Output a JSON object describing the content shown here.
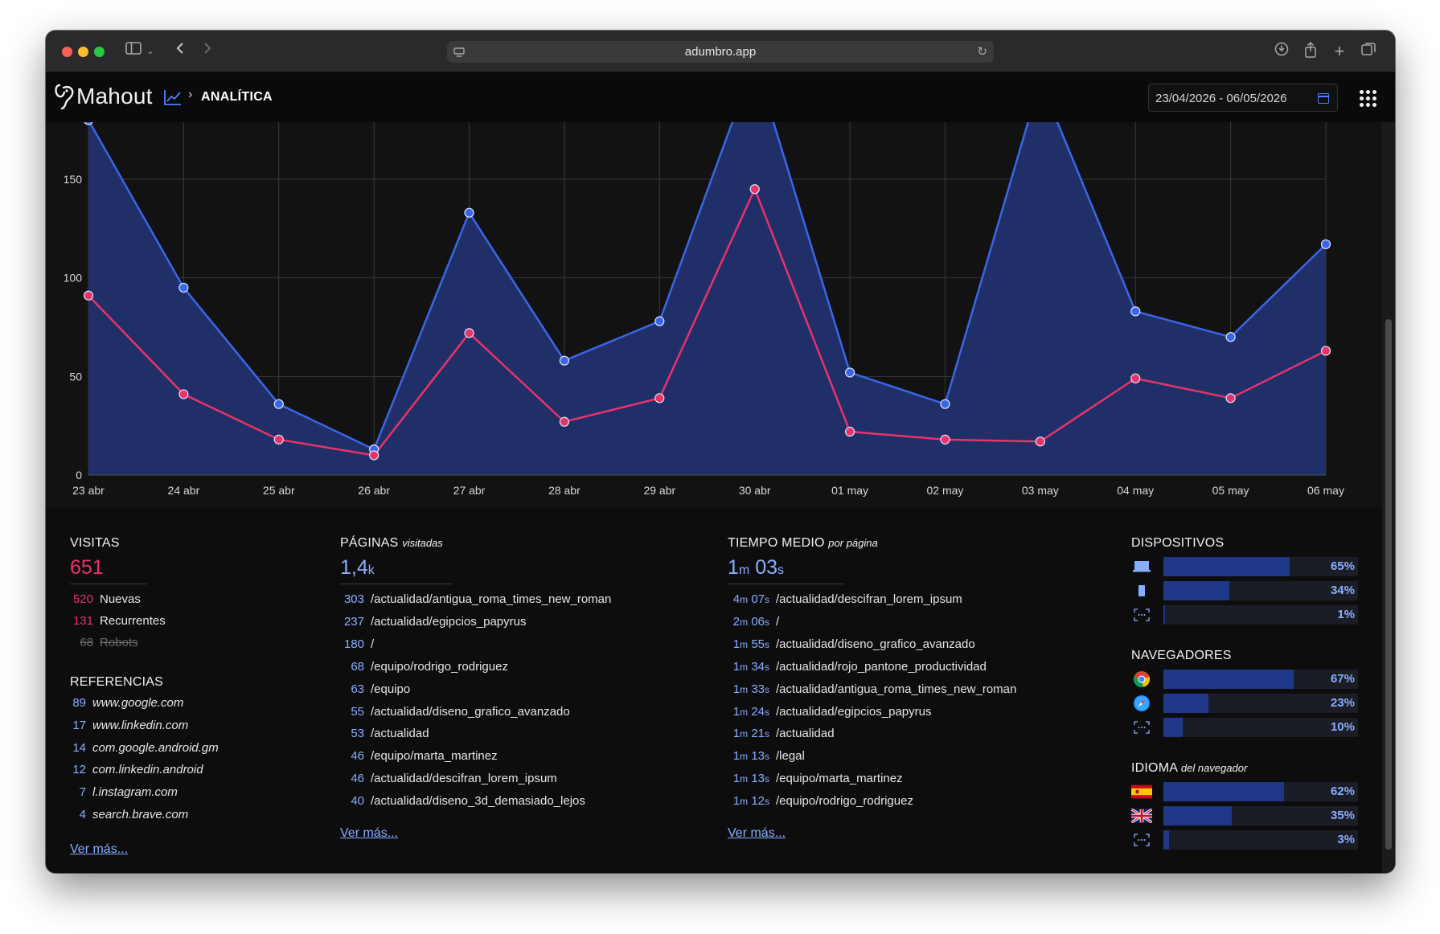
{
  "browser": {
    "url": "adumbro.app"
  },
  "header": {
    "logo_text": "Mahout",
    "breadcrumb": "ANALÍTICA",
    "date_range": "23/04/2026 - 06/05/2026"
  },
  "chart_data": {
    "type": "area",
    "categories": [
      "23 abr",
      "24 abr",
      "25 abr",
      "26 abr",
      "27 abr",
      "28 abr",
      "29 abr",
      "30 abr",
      "01 may",
      "02 may",
      "03 may",
      "04 may",
      "05 may",
      "06 may"
    ],
    "series": [
      {
        "color": "#3a66e8",
        "values": [
          180,
          95,
          36,
          13,
          133,
          58,
          78,
          210,
          52,
          36,
          200,
          83,
          70,
          117
        ]
      },
      {
        "color": "#e8336a",
        "values": [
          91,
          41,
          18,
          10,
          72,
          27,
          39,
          145,
          22,
          18,
          17,
          49,
          39,
          63
        ]
      }
    ],
    "yticks": [
      0,
      50,
      100,
      150
    ],
    "ylim": [
      0,
      178
    ],
    "grid": true
  },
  "visitas": {
    "title": "VISITAS",
    "total": "651",
    "rows": [
      {
        "value": "520",
        "label": "Nuevas"
      },
      {
        "value": "131",
        "label": "Recurrentes"
      },
      {
        "value": "68",
        "label": "Robots"
      }
    ]
  },
  "referencias": {
    "title": "REFERENCIAS",
    "rows": [
      {
        "value": "89",
        "label": "www.google.com"
      },
      {
        "value": "17",
        "label": "www.linkedin.com"
      },
      {
        "value": "14",
        "label": "com.google.android.gm"
      },
      {
        "value": "12",
        "label": "com.linkedin.android"
      },
      {
        "value": "7",
        "label": "l.instagram.com"
      },
      {
        "value": "4",
        "label": "search.brave.com"
      }
    ],
    "more": "Ver más..."
  },
  "paginas": {
    "title": "PÁGINAS",
    "subtitle": "visitadas",
    "total": "1,4",
    "total_unit": "k",
    "rows": [
      {
        "value": "303",
        "label": "/actualidad/antigua_roma_times_new_roman"
      },
      {
        "value": "237",
        "label": "/actualidad/egipcios_papyrus"
      },
      {
        "value": "180",
        "label": "/"
      },
      {
        "value": "68",
        "label": "/equipo/rodrigo_rodriguez"
      },
      {
        "value": "63",
        "label": "/equipo"
      },
      {
        "value": "55",
        "label": "/actualidad/diseno_grafico_avanzado"
      },
      {
        "value": "53",
        "label": "/actualidad"
      },
      {
        "value": "46",
        "label": "/equipo/marta_martinez"
      },
      {
        "value": "46",
        "label": "/actualidad/descifran_lorem_ipsum"
      },
      {
        "value": "40",
        "label": "/actualidad/diseno_3d_demasiado_lejos"
      }
    ],
    "more": "Ver más..."
  },
  "tiempo": {
    "title": "TIEMPO MEDIO",
    "subtitle": "por página",
    "total_m": "1",
    "total_s": "03",
    "unit_m": "m",
    "unit_s": "s",
    "rows": [
      {
        "m": "4",
        "s": "07",
        "label": "/actualidad/descifran_lorem_ipsum"
      },
      {
        "m": "2",
        "s": "06",
        "label": "/"
      },
      {
        "m": "1",
        "s": "55",
        "label": "/actualidad/diseno_grafico_avanzado"
      },
      {
        "m": "1",
        "s": "34",
        "label": "/actualidad/rojo_pantone_productividad"
      },
      {
        "m": "1",
        "s": "33",
        "label": "/actualidad/antigua_roma_times_new_roman"
      },
      {
        "m": "1",
        "s": "24",
        "label": "/actualidad/egipcios_papyrus"
      },
      {
        "m": "1",
        "s": "21",
        "label": "/actualidad"
      },
      {
        "m": "1",
        "s": "13",
        "label": "/legal"
      },
      {
        "m": "1",
        "s": "13",
        "label": "/equipo/marta_martinez"
      },
      {
        "m": "1",
        "s": "12",
        "label": "/equipo/rodrigo_rodriguez"
      }
    ],
    "more": "Ver más..."
  },
  "dispositivos": {
    "title": "DISPOSITIVOS",
    "rows": [
      {
        "icon": "desktop-icon",
        "pct": 65,
        "label": "65%"
      },
      {
        "icon": "mobile-icon",
        "pct": 34,
        "label": "34%"
      },
      {
        "icon": "unknown-icon",
        "pct": 1,
        "label": "1%"
      }
    ]
  },
  "navegadores": {
    "title": "NAVEGADORES",
    "rows": [
      {
        "icon": "chrome-icon",
        "pct": 67,
        "label": "67%"
      },
      {
        "icon": "safari-icon",
        "pct": 23,
        "label": "23%"
      },
      {
        "icon": "unknown-icon",
        "pct": 10,
        "label": "10%"
      }
    ]
  },
  "idioma": {
    "title": "IDIOMA",
    "subtitle": "del navegador",
    "rows": [
      {
        "icon": "spain-flag-icon",
        "pct": 62,
        "label": "62%"
      },
      {
        "icon": "uk-flag-icon",
        "pct": 35,
        "label": "35%"
      },
      {
        "icon": "unknown-icon",
        "pct": 3,
        "label": "3%"
      }
    ]
  },
  "colors": {
    "accent_blue": "#8aaeff",
    "accent_pink": "#e8336a",
    "bar_fill": "#1f3788"
  }
}
